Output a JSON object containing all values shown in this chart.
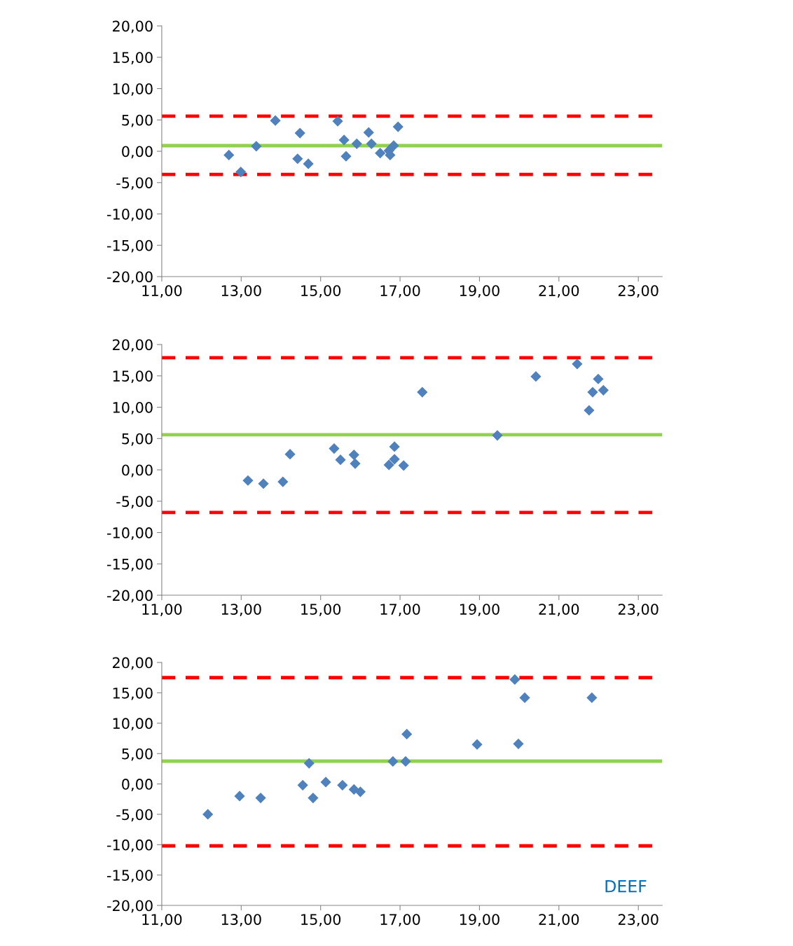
{
  "chart_data": [
    {
      "type": "scatter",
      "marker": "diamond",
      "grid": false,
      "x": [
        12.69,
        12.99,
        13.38,
        13.86,
        14.48,
        14.42,
        14.69,
        15.43,
        15.59,
        15.64,
        15.91,
        16.21,
        16.28,
        16.5,
        16.72,
        16.75,
        16.84,
        16.95
      ],
      "series": [
        {
          "color": "#4f81bd",
          "values": [
            -0.6,
            -3.3,
            0.8,
            4.9,
            2.9,
            -1.2,
            -2.0,
            4.8,
            1.8,
            -0.8,
            1.2,
            3.0,
            1.2,
            -0.3,
            0.1,
            -0.6,
            0.9,
            3.9
          ]
        }
      ],
      "ref_lines": [
        {
          "axis": "y",
          "value": 0.9,
          "color": "#92d050",
          "line_style": "solid"
        },
        {
          "axis": "y",
          "value": 5.6,
          "color": "#ff0000",
          "line_style": "dashed"
        },
        {
          "axis": "y",
          "value": -3.7,
          "color": "#ff0000",
          "line_style": "dashed"
        }
      ],
      "xlim": [
        11,
        23.6
      ],
      "ylim": [
        -20,
        20
      ],
      "xticks": [
        {
          "value": 11,
          "label": "11,00"
        },
        {
          "value": 13,
          "label": "13,00"
        },
        {
          "value": 15,
          "label": "15,00"
        },
        {
          "value": 17,
          "label": "17,00"
        },
        {
          "value": 19,
          "label": "19,00"
        },
        {
          "value": 21,
          "label": "21,00"
        },
        {
          "value": 23,
          "label": "23,00"
        }
      ],
      "yticks": [
        {
          "value": -20,
          "label": "-20,00"
        },
        {
          "value": -15,
          "label": "-15,00"
        },
        {
          "value": -10,
          "label": "-10,00"
        },
        {
          "value": -5,
          "label": "-5,00"
        },
        {
          "value": 0,
          "label": "0,00"
        },
        {
          "value": 5,
          "label": "5,00"
        },
        {
          "value": 10,
          "label": "10,00"
        },
        {
          "value": 15,
          "label": "15,00"
        },
        {
          "value": 20,
          "label": "20,00"
        }
      ]
    },
    {
      "type": "scatter",
      "marker": "diamond",
      "grid": false,
      "x": [
        13.17,
        13.56,
        14.05,
        14.23,
        15.34,
        15.5,
        15.84,
        15.87,
        16.72,
        16.86,
        16.86,
        17.09,
        17.56,
        19.45,
        20.42,
        21.46,
        21.99,
        21.85,
        22.12,
        21.76
      ],
      "series": [
        {
          "color": "#4f81bd",
          "values": [
            -1.7,
            -2.2,
            -1.9,
            2.5,
            3.4,
            1.6,
            2.4,
            1.0,
            0.8,
            1.7,
            3.7,
            0.7,
            12.4,
            5.5,
            14.9,
            16.9,
            14.5,
            12.4,
            12.7,
            9.5
          ]
        }
      ],
      "ref_lines": [
        {
          "axis": "y",
          "value": 5.6,
          "color": "#92d050",
          "line_style": "solid"
        },
        {
          "axis": "y",
          "value": 17.9,
          "color": "#ff0000",
          "line_style": "dashed"
        },
        {
          "axis": "y",
          "value": -6.8,
          "color": "#ff0000",
          "line_style": "dashed"
        }
      ],
      "xlim": [
        11,
        23.6
      ],
      "ylim": [
        -20,
        20
      ],
      "xticks": [
        {
          "value": 11,
          "label": "11,00"
        },
        {
          "value": 13,
          "label": "13,00"
        },
        {
          "value": 15,
          "label": "15,00"
        },
        {
          "value": 17,
          "label": "17,00"
        },
        {
          "value": 19,
          "label": "19,00"
        },
        {
          "value": 21,
          "label": "21,00"
        },
        {
          "value": 23,
          "label": "23,00"
        }
      ],
      "yticks": [
        {
          "value": -20,
          "label": "-20,00"
        },
        {
          "value": -15,
          "label": "-15,00"
        },
        {
          "value": -10,
          "label": "-10,00"
        },
        {
          "value": -5,
          "label": "-5,00"
        },
        {
          "value": 0,
          "label": "0,00"
        },
        {
          "value": 5,
          "label": "5,00"
        },
        {
          "value": 10,
          "label": "10,00"
        },
        {
          "value": 15,
          "label": "15,00"
        },
        {
          "value": 20,
          "label": "20,00"
        }
      ]
    },
    {
      "type": "scatter",
      "marker": "diamond",
      "grid": false,
      "annotations": [
        "DEEF"
      ],
      "x": [
        12.16,
        12.96,
        13.49,
        14.71,
        14.55,
        14.81,
        15.13,
        15.55,
        15.84,
        16.0,
        16.82,
        17.14,
        17.17,
        18.94,
        19.98,
        19.89,
        20.14,
        21.83
      ],
      "series": [
        {
          "color": "#4f81bd",
          "values": [
            -5.0,
            -2.0,
            -2.3,
            3.4,
            -0.2,
            -2.3,
            0.3,
            -0.2,
            -0.9,
            -1.3,
            3.7,
            3.7,
            8.2,
            6.5,
            6.6,
            17.2,
            14.2,
            14.2
          ]
        }
      ],
      "ref_lines": [
        {
          "axis": "y",
          "value": 3.75,
          "color": "#92d050",
          "line_style": "solid"
        },
        {
          "axis": "y",
          "value": 17.5,
          "color": "#ff0000",
          "line_style": "dashed"
        },
        {
          "axis": "y",
          "value": -10.2,
          "color": "#ff0000",
          "line_style": "dashed"
        }
      ],
      "xlim": [
        11,
        23.6
      ],
      "ylim": [
        -20,
        20
      ],
      "xticks": [
        {
          "value": 11,
          "label": "11,00"
        },
        {
          "value": 13,
          "label": "13,00"
        },
        {
          "value": 15,
          "label": "15,00"
        },
        {
          "value": 17,
          "label": "17,00"
        },
        {
          "value": 19,
          "label": "19,00"
        },
        {
          "value": 21,
          "label": "21,00"
        },
        {
          "value": 23,
          "label": "23,00"
        }
      ],
      "yticks": [
        {
          "value": -20,
          "label": "-20,00"
        },
        {
          "value": -15,
          "label": "-15,00"
        },
        {
          "value": -10,
          "label": "-10,00"
        },
        {
          "value": -5,
          "label": "-5,00"
        },
        {
          "value": 0,
          "label": "0,00"
        },
        {
          "value": 5,
          "label": "5,00"
        },
        {
          "value": 10,
          "label": "10,00"
        },
        {
          "value": 15,
          "label": "15,00"
        },
        {
          "value": 20,
          "label": "20,00"
        }
      ]
    }
  ]
}
